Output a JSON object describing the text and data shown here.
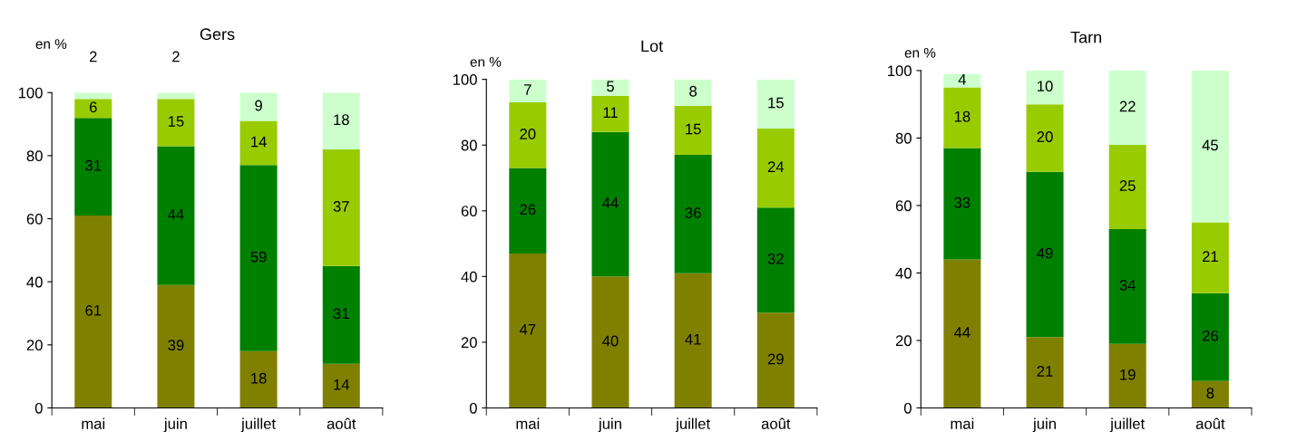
{
  "chart_data": [
    {
      "type": "bar",
      "title": "Gers",
      "ylabel": "en %",
      "categories": [
        "mai",
        "juin",
        "juillet",
        "août"
      ],
      "stacked": true,
      "data_labels": true,
      "ylim": [
        0,
        100
      ],
      "yticks": [
        0,
        20,
        40,
        60,
        80,
        100
      ],
      "grid": false,
      "legend": false,
      "series": [
        {
          "color": "#808000",
          "values": [
            61,
            39,
            18,
            14
          ]
        },
        {
          "color": "#008000",
          "values": [
            31,
            44,
            59,
            31
          ]
        },
        {
          "color": "#99cc00",
          "values": [
            6,
            15,
            14,
            37
          ]
        },
        {
          "color": "#ccffcc",
          "values": [
            2,
            2,
            9,
            18
          ]
        }
      ]
    },
    {
      "type": "bar",
      "title": "Lot",
      "ylabel": "en %",
      "categories": [
        "mai",
        "juin",
        "juillet",
        "août"
      ],
      "stacked": true,
      "data_labels": true,
      "ylim": [
        0,
        100
      ],
      "yticks": [
        0,
        20,
        40,
        60,
        80,
        100
      ],
      "grid": false,
      "legend": false,
      "series": [
        {
          "color": "#808000",
          "values": [
            47,
            40,
            41,
            29
          ]
        },
        {
          "color": "#008000",
          "values": [
            26,
            44,
            36,
            32
          ]
        },
        {
          "color": "#99cc00",
          "values": [
            20,
            11,
            15,
            24
          ]
        },
        {
          "color": "#ccffcc",
          "values": [
            7,
            5,
            8,
            15
          ]
        }
      ]
    },
    {
      "type": "bar",
      "title": "Tarn",
      "ylabel": "en %",
      "categories": [
        "mai",
        "juin",
        "juillet",
        "août"
      ],
      "stacked": true,
      "data_labels": true,
      "ylim": [
        0,
        100
      ],
      "yticks": [
        0,
        20,
        40,
        60,
        80,
        100
      ],
      "grid": false,
      "legend": false,
      "series": [
        {
          "color": "#808000",
          "values": [
            44,
            21,
            19,
            8
          ]
        },
        {
          "color": "#008000",
          "values": [
            33,
            49,
            34,
            26
          ]
        },
        {
          "color": "#99cc00",
          "values": [
            18,
            20,
            25,
            21
          ]
        },
        {
          "color": "#ccffcc",
          "values": [
            4,
            10,
            22,
            45
          ]
        }
      ]
    }
  ]
}
